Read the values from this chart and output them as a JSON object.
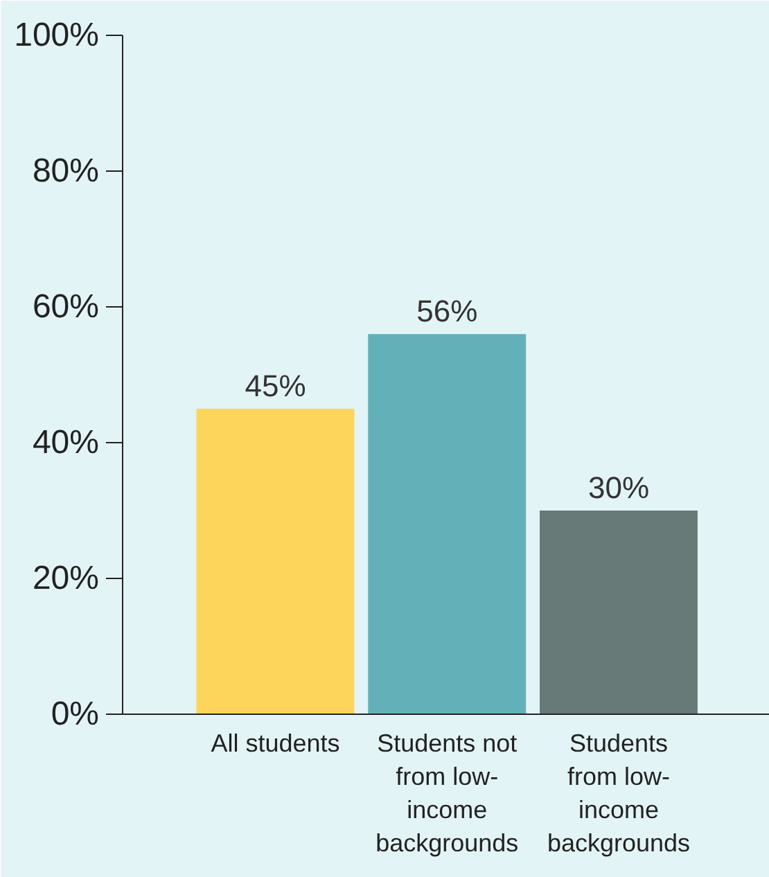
{
  "chart_data": {
    "type": "bar",
    "categories": [
      "All students",
      "Students not from low-income backgrounds",
      "Students from low-income backgrounds"
    ],
    "values": [
      45,
      56,
      30
    ],
    "colors": [
      "#fdd55a",
      "#63b0b8",
      "#687a78"
    ],
    "ylim": [
      0,
      100
    ],
    "yticks": [
      {
        "value": 0,
        "label": "0%"
      },
      {
        "value": 20,
        "label": "20%"
      },
      {
        "value": 40,
        "label": "40%"
      },
      {
        "value": 60,
        "label": "60%"
      },
      {
        "value": 80,
        "label": "80%"
      },
      {
        "value": 100,
        "label": "100%"
      }
    ],
    "value_labels": [
      "45%",
      "56%",
      "30%"
    ],
    "grid": false
  }
}
